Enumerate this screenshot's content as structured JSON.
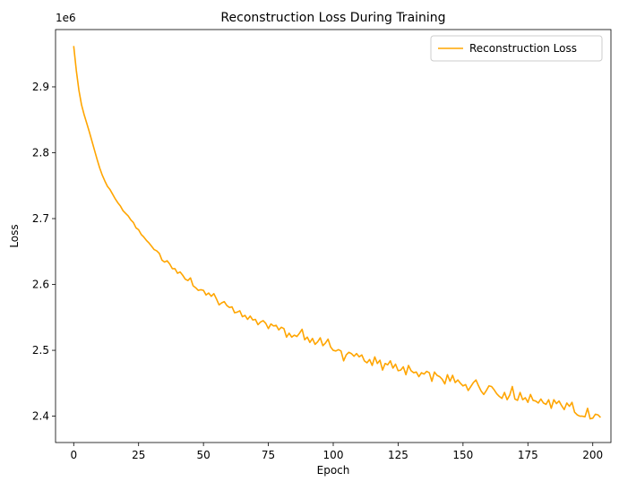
{
  "chart_data": {
    "type": "line",
    "title": "Reconstruction Loss During Training",
    "xlabel": "Epoch",
    "ylabel": "Loss",
    "y_offset_text": "1e6",
    "xlim": [
      -7,
      207
    ],
    "ylim": [
      2360000,
      2987000
    ],
    "x_ticks": [
      0,
      25,
      50,
      75,
      100,
      125,
      150,
      175,
      200
    ],
    "y_ticks": [
      2400000,
      2500000,
      2600000,
      2700000,
      2800000,
      2900000
    ],
    "y_tick_labels": [
      "2.4",
      "2.5",
      "2.6",
      "2.7",
      "2.8",
      "2.9"
    ],
    "grid": false,
    "legend_position": "top-right",
    "series": [
      {
        "name": "Reconstruction Loss",
        "color": "#ffa500",
        "x_start": 0,
        "x_step": 1,
        "values": [
          2962000,
          2925000,
          2895000,
          2873000,
          2858000,
          2845000,
          2832000,
          2818000,
          2804000,
          2790000,
          2777000,
          2766000,
          2757000,
          2749000,
          2744000,
          2737000,
          2730000,
          2724000,
          2719000,
          2712000,
          2708000,
          2704000,
          2698000,
          2694000,
          2686000,
          2683000,
          2676000,
          2672000,
          2667000,
          2663000,
          2658000,
          2653000,
          2651000,
          2647000,
          2637000,
          2634000,
          2636000,
          2631000,
          2624000,
          2624000,
          2617000,
          2619000,
          2614000,
          2608000,
          2606000,
          2610000,
          2598000,
          2595000,
          2591000,
          2592000,
          2591000,
          2584000,
          2587000,
          2582000,
          2586000,
          2578000,
          2569000,
          2572000,
          2574000,
          2568000,
          2565000,
          2566000,
          2557000,
          2558000,
          2560000,
          2551000,
          2553000,
          2547000,
          2552000,
          2546000,
          2547000,
          2539000,
          2543000,
          2545000,
          2541000,
          2533000,
          2540000,
          2537000,
          2538000,
          2531000,
          2535000,
          2533000,
          2520000,
          2526000,
          2520000,
          2523000,
          2521000,
          2526000,
          2532000,
          2516000,
          2520000,
          2512000,
          2518000,
          2509000,
          2513000,
          2519000,
          2507000,
          2511000,
          2517000,
          2505000,
          2500000,
          2499000,
          2501000,
          2499000,
          2484000,
          2493000,
          2497000,
          2495000,
          2491000,
          2495000,
          2490000,
          2493000,
          2484000,
          2481000,
          2486000,
          2477000,
          2490000,
          2480000,
          2485000,
          2470000,
          2480000,
          2478000,
          2484000,
          2473000,
          2479000,
          2469000,
          2470000,
          2475000,
          2463000,
          2477000,
          2469000,
          2466000,
          2467000,
          2460000,
          2466000,
          2464000,
          2468000,
          2466000,
          2453000,
          2467000,
          2462000,
          2460000,
          2456000,
          2449000,
          2463000,
          2453000,
          2462000,
          2451000,
          2455000,
          2450000,
          2446000,
          2448000,
          2439000,
          2445000,
          2451000,
          2455000,
          2446000,
          2438000,
          2433000,
          2439000,
          2446000,
          2445000,
          2440000,
          2434000,
          2430000,
          2427000,
          2436000,
          2425000,
          2432000,
          2445000,
          2426000,
          2424000,
          2436000,
          2425000,
          2428000,
          2421000,
          2433000,
          2424000,
          2423000,
          2420000,
          2426000,
          2420000,
          2418000,
          2425000,
          2412000,
          2425000,
          2419000,
          2423000,
          2416000,
          2410000,
          2420000,
          2415000,
          2421000,
          2406000,
          2402000,
          2400000,
          2400000,
          2399000,
          2412000,
          2396000,
          2397000,
          2403000,
          2402000,
          2398000
        ]
      }
    ]
  }
}
